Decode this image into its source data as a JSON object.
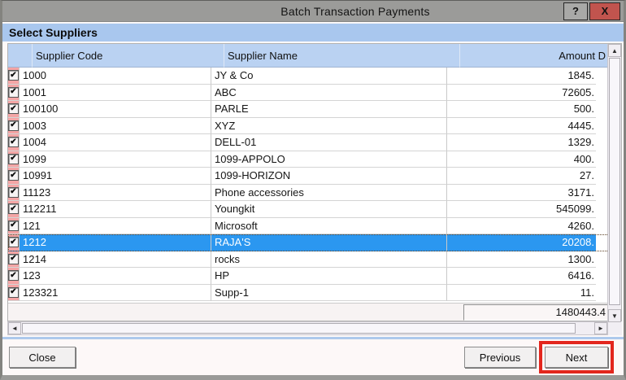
{
  "window": {
    "title": "Batch Transaction Payments",
    "help_label": "?",
    "close_label": "X"
  },
  "panel": {
    "title": "Select Suppliers"
  },
  "grid": {
    "columns": [
      "Supplier Code",
      "Supplier Name",
      "Amount D"
    ],
    "rows": [
      {
        "checked": true,
        "code": "1000",
        "name": "JY & Co",
        "amount": "1845.",
        "selected": false
      },
      {
        "checked": true,
        "code": "1001",
        "name": "ABC",
        "amount": "72605.",
        "selected": false
      },
      {
        "checked": true,
        "code": "100100",
        "name": "PARLE",
        "amount": "500.",
        "selected": false
      },
      {
        "checked": true,
        "code": "1003",
        "name": "XYZ",
        "amount": "4445.",
        "selected": false
      },
      {
        "checked": true,
        "code": "1004",
        "name": "DELL-01",
        "amount": "1329.",
        "selected": false
      },
      {
        "checked": true,
        "code": "1099",
        "name": "1099-APPOLO",
        "amount": "400.",
        "selected": false
      },
      {
        "checked": true,
        "code": "10991",
        "name": "1099-HORIZON",
        "amount": "27.",
        "selected": false
      },
      {
        "checked": true,
        "code": "11123",
        "name": "Phone accessories",
        "amount": "3171.",
        "selected": false
      },
      {
        "checked": true,
        "code": "112211",
        "name": "Youngkit",
        "amount": "545099.",
        "selected": false
      },
      {
        "checked": true,
        "code": "121",
        "name": "Microsoft",
        "amount": "4260.",
        "selected": false
      },
      {
        "checked": true,
        "code": "1212",
        "name": "RAJA'S",
        "amount": "20208.",
        "selected": true
      },
      {
        "checked": true,
        "code": "1214",
        "name": "rocks",
        "amount": "1300.",
        "selected": false
      },
      {
        "checked": true,
        "code": "123",
        "name": "HP",
        "amount": "6416.",
        "selected": false
      },
      {
        "checked": true,
        "code": "123321",
        "name": "Supp-1",
        "amount": "11.",
        "selected": false
      }
    ],
    "total": "1480443.4"
  },
  "buttons": {
    "close": "Close",
    "previous": "Previous",
    "next": "Next"
  },
  "icons": {
    "check": "✔",
    "scroll_up": "▲",
    "scroll_down": "▼",
    "scroll_left": "◄",
    "scroll_right": "►"
  },
  "colors": {
    "titlebar": "#9b9b99",
    "close_button_red": "#c1544e",
    "panel_blue": "#a9c7ee",
    "grid_header_blue": "#bad2f2",
    "checkbox_column_pink": "#f4a5a5",
    "selected_row_blue": "#2b97f0",
    "annotation_red": "#e3261d"
  }
}
